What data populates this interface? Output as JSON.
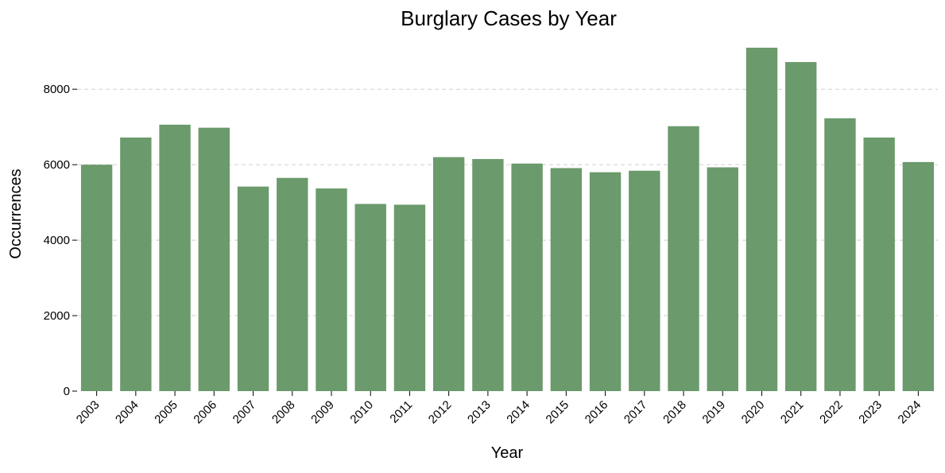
{
  "chart_data": {
    "type": "bar",
    "title": "Burglary Cases by Year",
    "xlabel": "Year",
    "ylabel": "Occurrences",
    "categories": [
      "2003",
      "2004",
      "2005",
      "2006",
      "2007",
      "2008",
      "2009",
      "2010",
      "2011",
      "2012",
      "2013",
      "2014",
      "2015",
      "2016",
      "2017",
      "2018",
      "2019",
      "2020",
      "2021",
      "2022",
      "2023",
      "2024"
    ],
    "values": [
      6000,
      6720,
      7060,
      6980,
      5420,
      5650,
      5370,
      4960,
      4940,
      6200,
      6150,
      6030,
      5910,
      5800,
      5840,
      7020,
      5930,
      9100,
      8720,
      7230,
      6720,
      6070
    ],
    "ylim": [
      0,
      9100
    ],
    "yticks": [
      0,
      2000,
      4000,
      6000,
      8000
    ],
    "grid": "y-dashed",
    "legend": "none",
    "bar_color": "#6b9a6c",
    "grid_color": "#cfcfcf",
    "xtick_rotation_deg": 45
  }
}
